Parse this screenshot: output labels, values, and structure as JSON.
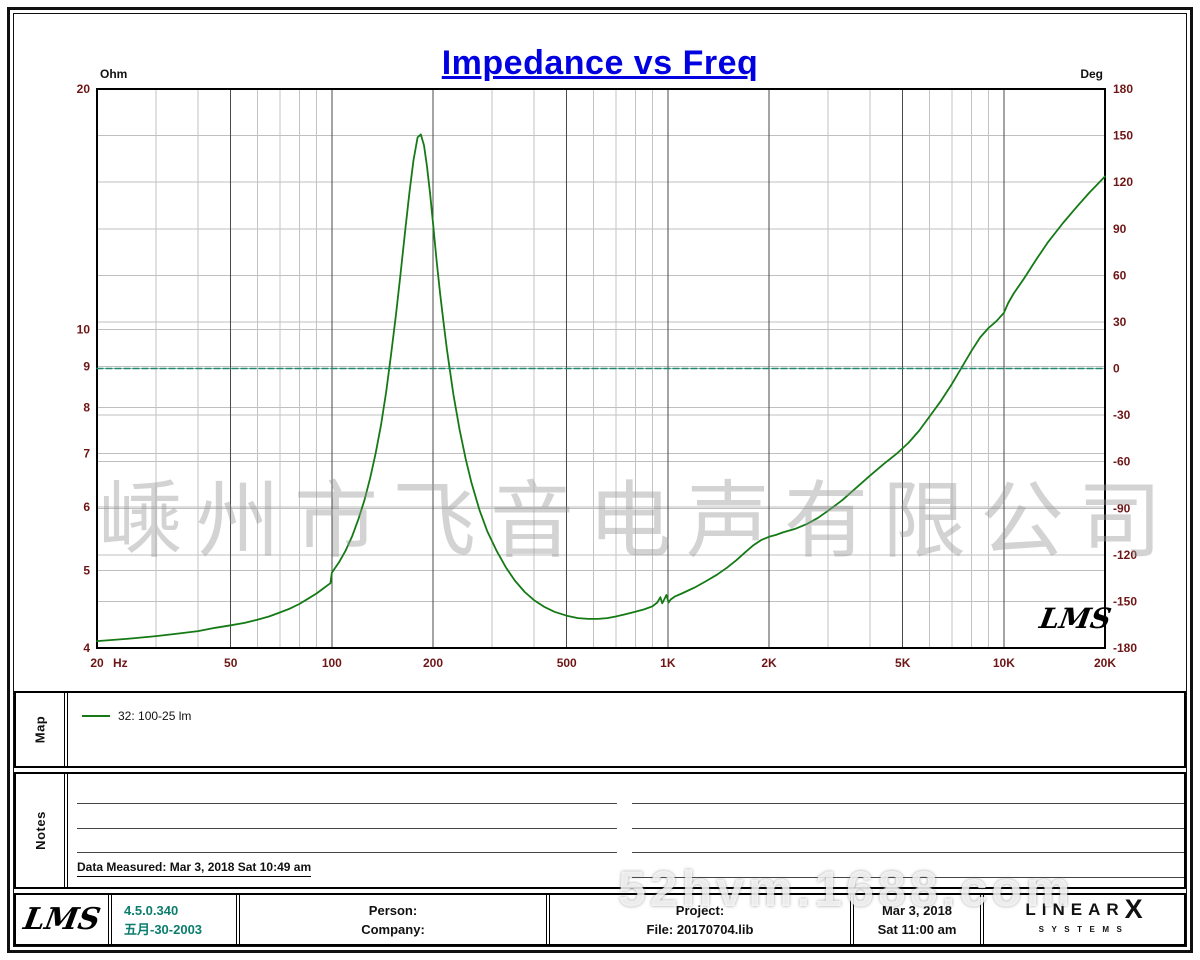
{
  "title": "Impedance vs Freq",
  "watermark_center": "嵊州市飞音电声有限公司",
  "watermark_bottom": "52hvm.1688.com",
  "chart_logo": "LMS",
  "map": {
    "label": "Map",
    "legend": {
      "name": "32: 100-25 lm",
      "color": "#157a15"
    }
  },
  "notes": {
    "label": "Notes",
    "data_measured": "Data Measured: Mar  3, 2018  Sat 10:49 am"
  },
  "footer": {
    "lms_logo": "LMS",
    "version": "4.5.0.340",
    "version_date": "五月-30-2003",
    "person_label": "Person:",
    "company_label": "Company:",
    "project_label": "Project:",
    "file_label": "File: 20170704.lib",
    "date": "Mar  3, 2018",
    "time": "Sat 11:00 am",
    "brand": {
      "linear": "LINEAR",
      "x": "X",
      "systems": "SYSTEMS"
    }
  },
  "chart_data": {
    "type": "line",
    "title": "Impedance vs Freq",
    "x_axis": {
      "scale": "log",
      "min": 20,
      "max": 20000,
      "unit": "Hz",
      "ticks": [
        [
          20,
          "20"
        ],
        [
          50,
          "50"
        ],
        [
          100,
          "100"
        ],
        [
          200,
          "200"
        ],
        [
          500,
          "500"
        ],
        [
          1000,
          "1K"
        ],
        [
          2000,
          "2K"
        ],
        [
          5000,
          "5K"
        ],
        [
          10000,
          "10K"
        ],
        [
          20000,
          "20K"
        ]
      ],
      "minor": [
        30,
        40,
        60,
        70,
        80,
        90,
        300,
        400,
        600,
        700,
        800,
        900,
        3000,
        4000,
        6000,
        7000,
        8000,
        9000
      ]
    },
    "y_left": {
      "label": "Ohm",
      "scale": "log",
      "min": 4,
      "max": 20,
      "ticks": [
        20,
        10,
        9,
        8,
        7,
        6,
        5,
        4
      ]
    },
    "y_right": {
      "label": "Deg",
      "scale": "linear",
      "min": -180,
      "max": 180,
      "ticks": [
        180,
        150,
        120,
        90,
        60,
        30,
        0,
        -30,
        -60,
        -90,
        -120,
        -150,
        -180
      ]
    },
    "grid": true,
    "legend_position": "map-section-below",
    "series": [
      {
        "name": "impedance",
        "legend": "32: 100-25 lm",
        "axis": "left",
        "color": "#157a15",
        "width": 1.8,
        "points": [
          [
            20,
            4.08
          ],
          [
            25,
            4.11
          ],
          [
            30,
            4.14
          ],
          [
            35,
            4.17
          ],
          [
            40,
            4.2
          ],
          [
            45,
            4.24
          ],
          [
            50,
            4.27
          ],
          [
            55,
            4.3
          ],
          [
            60,
            4.34
          ],
          [
            65,
            4.38
          ],
          [
            70,
            4.43
          ],
          [
            75,
            4.48
          ],
          [
            80,
            4.54
          ],
          [
            85,
            4.61
          ],
          [
            90,
            4.68
          ],
          [
            95,
            4.76
          ],
          [
            99,
            4.82
          ],
          [
            100,
            4.97
          ],
          [
            105,
            5.12
          ],
          [
            110,
            5.3
          ],
          [
            115,
            5.52
          ],
          [
            120,
            5.8
          ],
          [
            125,
            6.12
          ],
          [
            130,
            6.52
          ],
          [
            135,
            7.0
          ],
          [
            140,
            7.6
          ],
          [
            145,
            8.35
          ],
          [
            150,
            9.3
          ],
          [
            155,
            10.4
          ],
          [
            160,
            11.7
          ],
          [
            165,
            13.2
          ],
          [
            170,
            14.8
          ],
          [
            175,
            16.3
          ],
          [
            180,
            17.4
          ],
          [
            184,
            17.55
          ],
          [
            188,
            17.0
          ],
          [
            192,
            16.0
          ],
          [
            196,
            14.8
          ],
          [
            200,
            13.6
          ],
          [
            205,
            12.2
          ],
          [
            210,
            11.1
          ],
          [
            215,
            10.2
          ],
          [
            220,
            9.45
          ],
          [
            230,
            8.3
          ],
          [
            240,
            7.5
          ],
          [
            250,
            6.9
          ],
          [
            260,
            6.45
          ],
          [
            275,
            5.95
          ],
          [
            290,
            5.6
          ],
          [
            310,
            5.28
          ],
          [
            330,
            5.04
          ],
          [
            350,
            4.86
          ],
          [
            375,
            4.7
          ],
          [
            400,
            4.59
          ],
          [
            430,
            4.5
          ],
          [
            460,
            4.44
          ],
          [
            500,
            4.39
          ],
          [
            540,
            4.36
          ],
          [
            580,
            4.35
          ],
          [
            620,
            4.35
          ],
          [
            660,
            4.36
          ],
          [
            700,
            4.38
          ],
          [
            750,
            4.41
          ],
          [
            800,
            4.44
          ],
          [
            850,
            4.47
          ],
          [
            900,
            4.51
          ],
          [
            930,
            4.56
          ],
          [
            950,
            4.63
          ],
          [
            962,
            4.55
          ],
          [
            975,
            4.6
          ],
          [
            990,
            4.66
          ],
          [
            1005,
            4.56
          ],
          [
            1020,
            4.6
          ],
          [
            1050,
            4.64
          ],
          [
            1100,
            4.68
          ],
          [
            1150,
            4.72
          ],
          [
            1200,
            4.76
          ],
          [
            1300,
            4.85
          ],
          [
            1400,
            4.94
          ],
          [
            1500,
            5.04
          ],
          [
            1600,
            5.15
          ],
          [
            1700,
            5.27
          ],
          [
            1800,
            5.38
          ],
          [
            1900,
            5.46
          ],
          [
            2000,
            5.51
          ],
          [
            2100,
            5.54
          ],
          [
            2200,
            5.58
          ],
          [
            2400,
            5.64
          ],
          [
            2600,
            5.72
          ],
          [
            2800,
            5.82
          ],
          [
            3000,
            5.94
          ],
          [
            3300,
            6.12
          ],
          [
            3600,
            6.32
          ],
          [
            4000,
            6.57
          ],
          [
            4400,
            6.8
          ],
          [
            4800,
            7.0
          ],
          [
            5200,
            7.22
          ],
          [
            5600,
            7.48
          ],
          [
            6000,
            7.78
          ],
          [
            6500,
            8.15
          ],
          [
            7000,
            8.55
          ],
          [
            7500,
            8.98
          ],
          [
            8000,
            9.4
          ],
          [
            8500,
            9.78
          ],
          [
            9000,
            10.05
          ],
          [
            9500,
            10.25
          ],
          [
            10000,
            10.5
          ],
          [
            10300,
            10.8
          ],
          [
            10700,
            11.1
          ],
          [
            11500,
            11.6
          ],
          [
            12500,
            12.25
          ],
          [
            13500,
            12.85
          ],
          [
            15000,
            13.6
          ],
          [
            16500,
            14.25
          ],
          [
            18000,
            14.85
          ],
          [
            19000,
            15.2
          ],
          [
            20000,
            15.55
          ]
        ]
      },
      {
        "name": "zero-deg-reference",
        "axis": "right",
        "color": "#1e8a6e",
        "width": 1.4,
        "dash": "6 3",
        "points": [
          [
            20,
            0
          ],
          [
            20000,
            0
          ]
        ]
      }
    ]
  }
}
